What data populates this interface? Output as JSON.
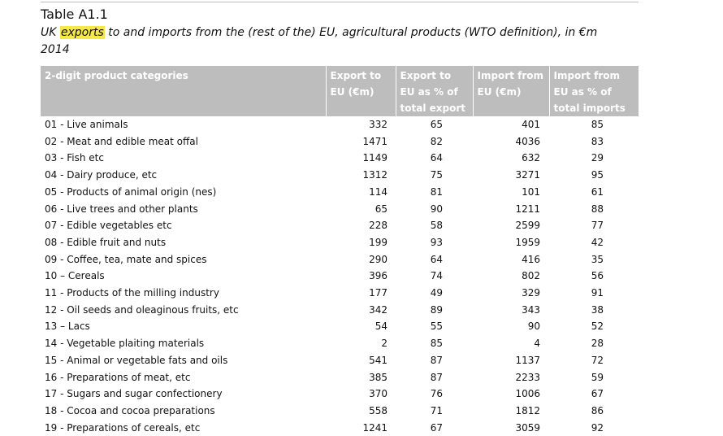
{
  "table": {
    "label": "Table A1.1",
    "caption_before": "UK ",
    "caption_highlight": "exports",
    "caption_after": " to and imports from the (rest of the) EU, agricultural products (WTO definition), in €m",
    "caption_year": "2014",
    "highlight_color": "#f7e84a",
    "header_color": "#bdbdbd",
    "columns": [
      "2-digit product categories",
      "Export to EU (€m)",
      "Export to EU as % of total export",
      "Import from EU (€m)",
      "Import from EU as % of total imports"
    ],
    "rows": [
      {
        "category": "01 - Live animals",
        "export": "332",
        "export_pct": "65",
        "import": "401",
        "import_pct": "85"
      },
      {
        "category": "02 - Meat and edible meat offal",
        "export": "1471",
        "export_pct": "82",
        "import": "4036",
        "import_pct": "83"
      },
      {
        "category": "03 - Fish etc",
        "export": "1149",
        "export_pct": "64",
        "import": "632",
        "import_pct": "29"
      },
      {
        "category": "04 - Dairy produce, etc",
        "export": "1312",
        "export_pct": "75",
        "import": "3271",
        "import_pct": "95"
      },
      {
        "category": "05 - Products of animal origin (nes)",
        "export": "114",
        "export_pct": "81",
        "import": "101",
        "import_pct": "61"
      },
      {
        "category": "06 - Live trees and other plants",
        "export": "65",
        "export_pct": "90",
        "import": "1211",
        "import_pct": "88"
      },
      {
        "category": "07 - Edible vegetables etc",
        "export": "228",
        "export_pct": "58",
        "import": "2599",
        "import_pct": "77"
      },
      {
        "category": "08 - Edible fruit and nuts",
        "export": "199",
        "export_pct": "93",
        "import": "1959",
        "import_pct": "42"
      },
      {
        "category": "09 - Coffee, tea, mate and spices",
        "export": "290",
        "export_pct": "64",
        "import": "416",
        "import_pct": "35"
      },
      {
        "category": "10 – Cereals",
        "export": "396",
        "export_pct": "74",
        "import": "802",
        "import_pct": "56"
      },
      {
        "category": "11 - Products of the milling industry",
        "export": "177",
        "export_pct": "49",
        "import": "329",
        "import_pct": "91"
      },
      {
        "category": "12 - Oil seeds and oleaginous fruits, etc",
        "export": "342",
        "export_pct": "89",
        "import": "343",
        "import_pct": "38"
      },
      {
        "category": "13 – Lacs",
        "export": "54",
        "export_pct": "55",
        "import": "90",
        "import_pct": "52"
      },
      {
        "category": "14 - Vegetable plaiting materials",
        "export": "2",
        "export_pct": "85",
        "import": "4",
        "import_pct": "28"
      },
      {
        "category": "15 - Animal or vegetable fats and oils",
        "export": "541",
        "export_pct": "87",
        "import": "1137",
        "import_pct": "72"
      },
      {
        "category": "16 - Preparations of meat, etc",
        "export": "385",
        "export_pct": "87",
        "import": "2233",
        "import_pct": "59"
      },
      {
        "category": "17 - Sugars and sugar confectionery",
        "export": "370",
        "export_pct": "76",
        "import": "1006",
        "import_pct": "67"
      },
      {
        "category": "18 - Cocoa and cocoa preparations",
        "export": "558",
        "export_pct": "71",
        "import": "1812",
        "import_pct": "86"
      },
      {
        "category": "19 - Preparations of cereals, etc",
        "export": "1241",
        "export_pct": "67",
        "import": "3059",
        "import_pct": "92"
      }
    ]
  }
}
